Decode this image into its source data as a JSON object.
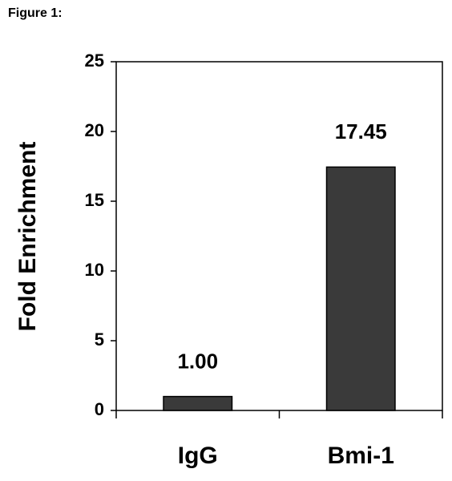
{
  "chart_data": {
    "type": "bar",
    "title": "Figure 1:",
    "y_label": "Fold Enrichment",
    "categories": [
      "IgG",
      "Bmi-1"
    ],
    "values": [
      1.0,
      17.45
    ],
    "value_labels": [
      "1.00",
      "17.45"
    ],
    "color": "#3a3a3a",
    "ylim": [
      0,
      25
    ],
    "yticks": [
      0,
      5,
      10,
      15,
      20,
      25
    ],
    "grid": false
  }
}
